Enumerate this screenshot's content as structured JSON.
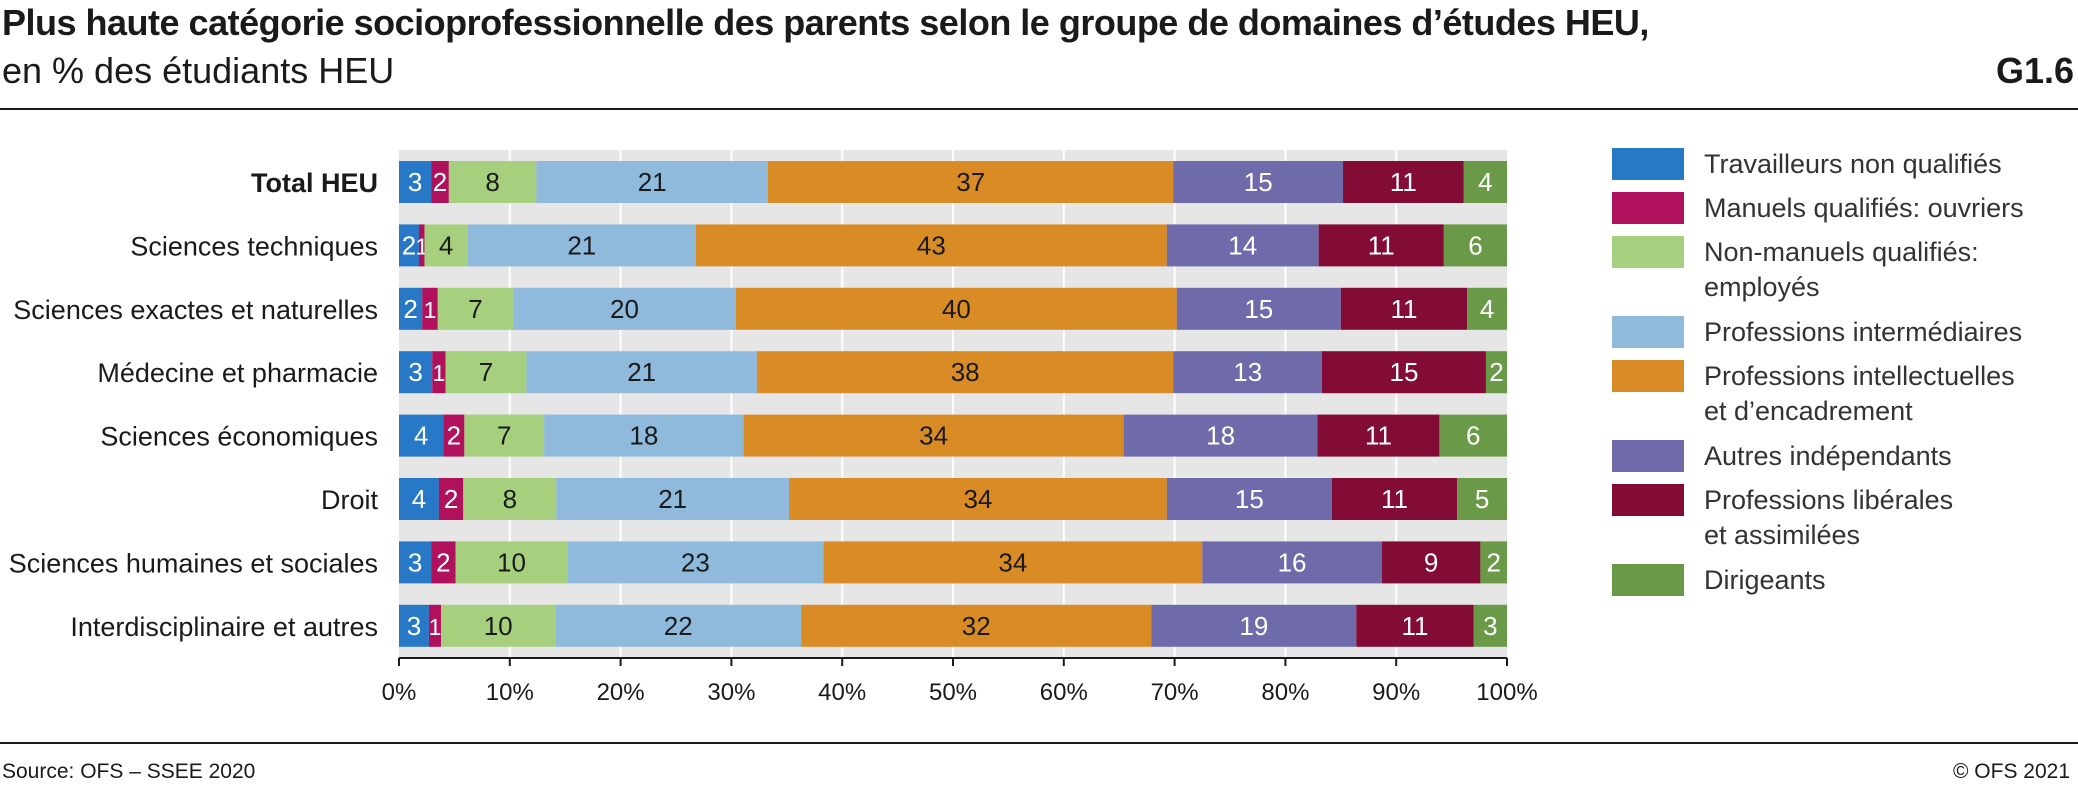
{
  "header": {
    "title": "Plus haute catégorie socioprofessionnelle des parents selon le groupe de domaines d’études HEU,",
    "subtitle": "en % des étudiants HEU",
    "code": "G1.6"
  },
  "footer": {
    "source": "Source: OFS – SSEE 2020",
    "copyright": "© OFS 2021"
  },
  "chart_data": {
    "type": "bar",
    "orientation": "horizontal",
    "stacked": true,
    "title": "Plus haute catégorie socioprofessionnelle des parents selon le groupe de domaines d’études HEU,",
    "subtitle": "en % des étudiants HEU",
    "xlabel": "",
    "ylabel": "",
    "xlim": [
      0,
      100
    ],
    "x_ticks": [
      "0%",
      "10%",
      "20%",
      "30%",
      "40%",
      "50%",
      "60%",
      "70%",
      "80%",
      "90%",
      "100%"
    ],
    "grid": true,
    "legend_position": "right",
    "categories": [
      "Total HEU",
      "Sciences techniques",
      "Sciences exactes et naturelles",
      "Médecine et pharmacie",
      "Sciences économiques",
      "Droit",
      "Sciences humaines et sociales",
      "Interdisciplinaire et autres"
    ],
    "bold_categories": [
      "Total HEU"
    ],
    "series": [
      {
        "name": "Travailleurs non qualifiés",
        "color": "#2878c8",
        "text_color": "#ffffff",
        "values": [
          2.9,
          1.8,
          2.1,
          3.0,
          4.0,
          3.6,
          2.9,
          2.7
        ]
      },
      {
        "name": "Manuels qualifiés: ouvriers",
        "color": "#b0115c",
        "text_color": "#ffffff",
        "values": [
          1.6,
          0.5,
          1.4,
          1.2,
          1.9,
          2.2,
          2.2,
          1.1
        ]
      },
      {
        "name": "Non-manuels qualifiés: employés",
        "color": "#a6d07e",
        "text_color": "#1a1a1a",
        "values": [
          7.9,
          3.9,
          6.8,
          7.3,
          7.2,
          8.4,
          10.1,
          10.3
        ]
      },
      {
        "name": "Professions intermédiaires",
        "color": "#8fbadc",
        "text_color": "#1a1a1a",
        "values": [
          20.9,
          20.6,
          20.1,
          20.8,
          18.0,
          21.0,
          23.1,
          22.2
        ]
      },
      {
        "name": "Professions intellectuelles et d’encadrement",
        "color": "#d98b25",
        "text_color": "#1a1a1a",
        "values": [
          36.6,
          42.5,
          39.8,
          37.6,
          34.3,
          34.1,
          34.2,
          31.6
        ]
      },
      {
        "name": "Autres indépendants",
        "color": "#6f6aa9",
        "text_color": "#ffffff",
        "values": [
          15.3,
          13.7,
          14.8,
          13.4,
          17.5,
          14.9,
          16.2,
          18.5
        ]
      },
      {
        "name": "Professions libérales et assimilées",
        "color": "#820c36",
        "text_color": "#ffffff",
        "values": [
          10.9,
          11.3,
          11.4,
          14.8,
          11.0,
          11.3,
          8.9,
          10.6
        ]
      },
      {
        "name": "Dirigeants",
        "color": "#6a9a48",
        "text_color": "#ffffff",
        "values": [
          3.9,
          5.7,
          3.6,
          1.9,
          6.1,
          4.5,
          2.4,
          3.0
        ]
      }
    ]
  },
  "legend": [
    {
      "lines": [
        "Travailleurs non qualifiés"
      ],
      "color": "#2878c8"
    },
    {
      "lines": [
        "Manuels qualifiés: ouvriers"
      ],
      "color": "#b0115c"
    },
    {
      "lines": [
        "Non-manuels qualifiés:",
        "employés"
      ],
      "color": "#a6d07e"
    },
    {
      "lines": [
        "Professions intermédiaires"
      ],
      "color": "#8fbadc"
    },
    {
      "lines": [
        "Professions intellectuelles",
        "et d’encadrement"
      ],
      "color": "#d98b25"
    },
    {
      "lines": [
        "Autres indépendants"
      ],
      "color": "#6f6aa9"
    },
    {
      "lines": [
        "Professions libérales",
        "et assimilées"
      ],
      "color": "#820c36"
    },
    {
      "lines": [
        "Dirigeants"
      ],
      "color": "#6a9a48"
    }
  ]
}
